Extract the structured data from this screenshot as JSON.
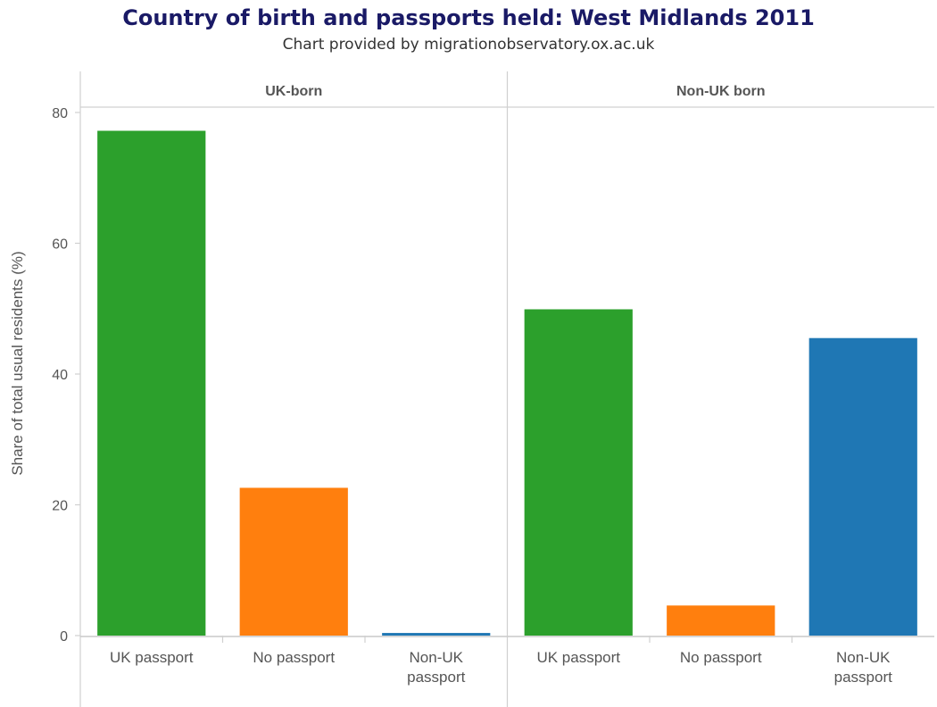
{
  "title": "Country of birth and passports held: West Midlands 2011",
  "subtitle": "Chart provided by migrationobservatory.ox.ac.uk",
  "colors": {
    "uk_passport": "#2ca02c",
    "no_passport": "#ff7f0e",
    "non_uk_passport": "#1f77b4",
    "title": "#1a1a66"
  },
  "chart_data": {
    "type": "bar",
    "title": "Country of birth and passports held: West Midlands 2011",
    "subtitle": "Chart provided by migrationobservatory.ox.ac.uk",
    "ylabel": "Share of total usual residents (%)",
    "xlabel": "",
    "ylim": [
      0,
      80
    ],
    "yticks": [
      0,
      20,
      40,
      60,
      80
    ],
    "grid": false,
    "categories": [
      "UK passport",
      "No passport",
      "Non-UK passport"
    ],
    "category_lines": [
      [
        "UK passport"
      ],
      [
        "No passport"
      ],
      [
        "Non-UK",
        "passport"
      ]
    ],
    "panels": [
      {
        "name": "UK-born",
        "values": [
          77.2,
          22.6,
          0.4
        ]
      },
      {
        "name": "Non-UK born",
        "values": [
          49.9,
          4.6,
          45.5
        ]
      }
    ]
  }
}
